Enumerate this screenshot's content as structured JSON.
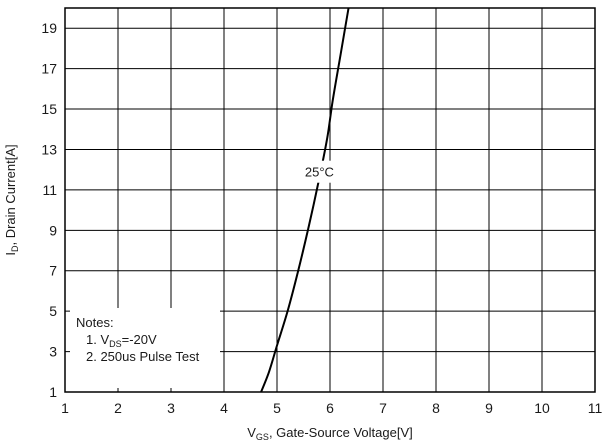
{
  "chart_data": {
    "type": "line",
    "xlabel": {
      "main": "V",
      "sub": "GS",
      "rest": ", Gate-Source Voltage[V]"
    },
    "ylabel": {
      "main": "I",
      "sub": "D",
      "rest": ", Drain Current[A]"
    },
    "xlim": [
      1,
      11
    ],
    "ylim": [
      1,
      20
    ],
    "x_ticks": [
      1,
      2,
      3,
      4,
      5,
      6,
      7,
      8,
      9,
      10,
      11
    ],
    "y_ticks": [
      1,
      3,
      5,
      7,
      9,
      11,
      13,
      15,
      17,
      19
    ],
    "grid": true,
    "series": [
      {
        "name": "25°C",
        "x": [
          4.7,
          4.85,
          5.0,
          5.2,
          5.4,
          5.6,
          5.8,
          5.95,
          6.05,
          6.2,
          6.35
        ],
        "y": [
          1.0,
          2.0,
          3.3,
          5.0,
          7.0,
          9.2,
          11.6,
          13.6,
          15.4,
          17.7,
          20.0
        ]
      }
    ],
    "annotations": [
      {
        "text": "25°C",
        "x": 5.8,
        "y": 11.9
      }
    ],
    "notes": {
      "title": "Notes:",
      "line1": {
        "prefix": "1. V",
        "sub": "DS",
        "rest": "=-20V"
      },
      "line2": "2. 250us Pulse Test"
    },
    "colors": {
      "grid": "#000000",
      "line": "#000000",
      "background": "#ffffff"
    }
  }
}
